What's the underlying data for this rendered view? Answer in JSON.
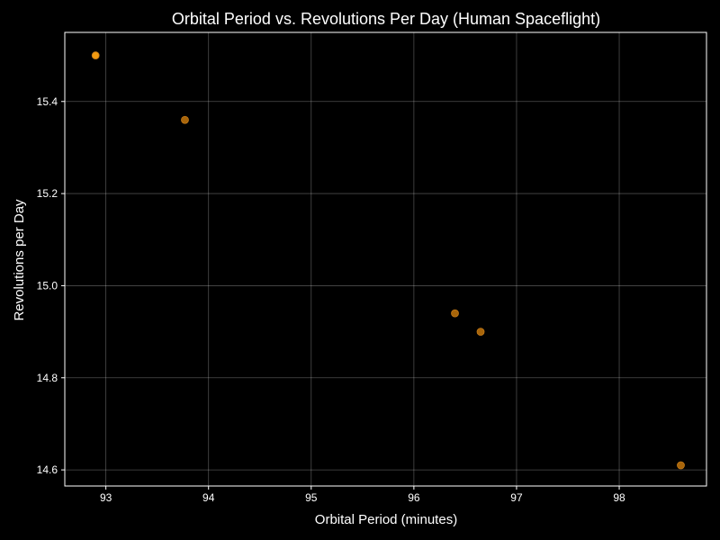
{
  "chart_data": {
    "type": "scatter",
    "title": "Orbital Period vs. Revolutions Per Day (Human Spaceflight)",
    "xlabel": "Orbital Period (minutes)",
    "ylabel": "Revolutions per Day",
    "xlim": [
      92.6,
      98.85
    ],
    "ylim": [
      14.565,
      15.55
    ],
    "xticks": [
      93,
      94,
      95,
      96,
      97,
      98
    ],
    "yticks": [
      14.6,
      14.8,
      15.0,
      15.2,
      15.4
    ],
    "ytick_labels": [
      "14.6",
      "14.8",
      "15.0",
      "15.2",
      "15.4"
    ],
    "grid": true,
    "points": [
      {
        "x": 92.9,
        "y": 15.5,
        "highlight": true
      },
      {
        "x": 93.77,
        "y": 15.36,
        "highlight": false
      },
      {
        "x": 96.4,
        "y": 14.94,
        "highlight": false
      },
      {
        "x": 96.65,
        "y": 14.9,
        "highlight": false
      },
      {
        "x": 98.6,
        "y": 14.61,
        "highlight": false
      }
    ]
  },
  "colors": {
    "background": "#000000",
    "axes": "#ffffff",
    "text": "#ffffff",
    "marker": "#a8650a",
    "marker_highlight": "#f29a10",
    "marker_edge": "#c47a18"
  }
}
